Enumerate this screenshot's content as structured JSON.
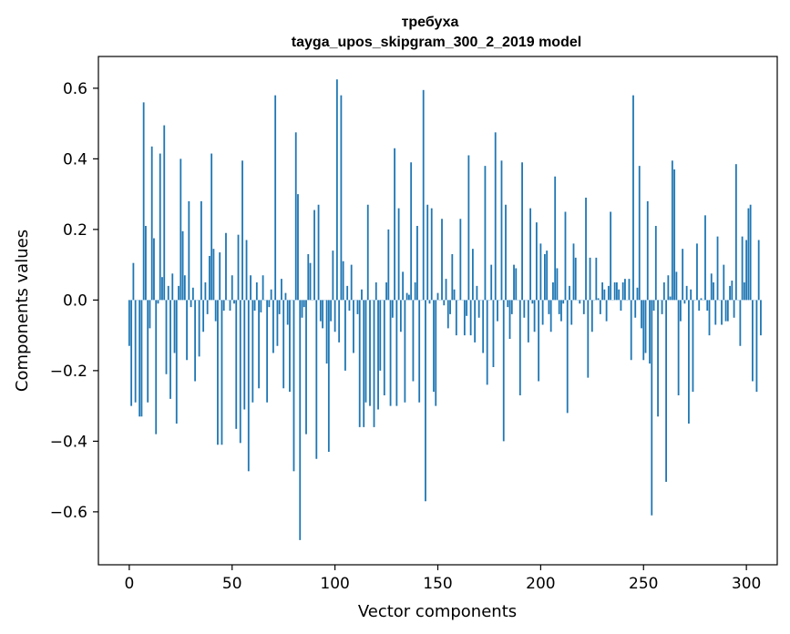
{
  "chart_data": {
    "type": "bar",
    "title": "требуха",
    "subtitle": "tayga_upos_skipgram_300_2_2019 model",
    "xlabel": "Vector components",
    "ylabel": "Components values",
    "xlim": [
      -15,
      315
    ],
    "ylim": [
      -0.75,
      0.69
    ],
    "xticks": [
      0,
      50,
      100,
      150,
      200,
      250,
      300
    ],
    "yticks": [
      -0.6,
      -0.4,
      -0.2,
      0.0,
      0.2,
      0.4,
      0.6
    ],
    "xtick_labels": [
      "0",
      "50",
      "100",
      "150",
      "200",
      "250",
      "300"
    ],
    "ytick_labels": [
      "−0.6",
      "−0.4",
      "−0.2",
      "0.0",
      "0.2",
      "0.4",
      "0.6"
    ],
    "grid": false,
    "bar_color": "#1f77b4",
    "values": [
      -0.13,
      -0.3,
      0.105,
      -0.29,
      0.0,
      -0.33,
      -0.33,
      0.56,
      0.21,
      -0.29,
      -0.08,
      0.435,
      0.175,
      -0.38,
      -0.01,
      0.415,
      0.065,
      0.495,
      -0.21,
      0.04,
      -0.28,
      0.075,
      -0.15,
      -0.35,
      0.04,
      0.4,
      0.195,
      0.07,
      -0.17,
      0.28,
      -0.02,
      0.035,
      -0.23,
      0.0,
      -0.16,
      0.28,
      -0.09,
      0.05,
      -0.04,
      0.125,
      0.415,
      0.145,
      -0.06,
      -0.41,
      0.135,
      -0.41,
      -0.03,
      0.19,
      0.0,
      -0.03,
      0.07,
      -0.01,
      -0.365,
      0.185,
      -0.405,
      0.395,
      -0.31,
      0.17,
      -0.485,
      0.07,
      -0.29,
      -0.03,
      0.05,
      -0.25,
      -0.035,
      0.07,
      0.0,
      -0.29,
      -0.02,
      0.03,
      -0.15,
      0.58,
      -0.13,
      -0.04,
      0.06,
      -0.25,
      0.02,
      -0.07,
      -0.26,
      0.0,
      -0.485,
      0.475,
      0.3,
      -0.68,
      -0.05,
      -0.02,
      -0.38,
      0.13,
      0.105,
      0.0,
      0.255,
      -0.45,
      0.27,
      -0.06,
      -0.08,
      0.0,
      -0.18,
      -0.43,
      -0.06,
      0.14,
      -0.09,
      0.625,
      -0.12,
      0.58,
      0.11,
      -0.2,
      0.04,
      -0.03,
      0.1,
      -0.15,
      0.0,
      -0.04,
      -0.36,
      0.03,
      -0.36,
      -0.29,
      0.27,
      -0.3,
      0.0,
      -0.36,
      0.05,
      -0.31,
      -0.2,
      0.0,
      -0.27,
      0.05,
      0.2,
      -0.3,
      -0.05,
      0.43,
      -0.3,
      0.26,
      -0.09,
      0.08,
      -0.29,
      0.02,
      0.015,
      0.39,
      -0.23,
      0.05,
      0.21,
      -0.29,
      0.0,
      0.595,
      -0.57,
      0.27,
      -0.01,
      0.26,
      -0.26,
      -0.3,
      0.02,
      0.0,
      0.23,
      -0.015,
      0.06,
      -0.08,
      -0.04,
      0.13,
      0.03,
      -0.1,
      0.0,
      0.23,
      0.0,
      -0.1,
      -0.045,
      0.41,
      -0.1,
      0.145,
      -0.12,
      0.04,
      -0.05,
      0.0,
      -0.15,
      0.38,
      -0.24,
      0.0,
      0.1,
      -0.19,
      0.475,
      -0.06,
      0.0,
      0.395,
      -0.4,
      0.27,
      -0.02,
      -0.11,
      -0.04,
      0.1,
      0.09,
      0.0,
      -0.27,
      0.39,
      -0.05,
      0.0,
      -0.12,
      0.26,
      -0.01,
      -0.09,
      0.22,
      -0.23,
      0.16,
      -0.07,
      0.13,
      0.14,
      -0.04,
      -0.09,
      0.05,
      0.35,
      0.09,
      -0.04,
      -0.06,
      -0.01,
      0.25,
      -0.32,
      0.04,
      -0.07,
      0.16,
      0.12,
      0.0,
      -0.01,
      0.0,
      -0.04,
      0.29,
      -0.22,
      0.12,
      -0.09,
      0.0,
      0.12,
      0.005,
      -0.04,
      0.05,
      0.03,
      -0.06,
      0.04,
      0.25,
      0.0,
      0.05,
      0.05,
      0.03,
      -0.03,
      0.05,
      0.06,
      0.0,
      0.06,
      -0.17,
      0.58,
      -0.05,
      0.035,
      0.38,
      -0.08,
      -0.17,
      -0.15,
      0.28,
      -0.18,
      -0.61,
      -0.03,
      0.21,
      -0.33,
      0.0,
      -0.04,
      0.05,
      -0.515,
      0.07,
      0.01,
      0.395,
      0.37,
      0.08,
      -0.27,
      -0.06,
      0.145,
      -0.01,
      0.04,
      -0.35,
      0.03,
      -0.26,
      0.0,
      0.16,
      -0.03,
      0.005,
      0.0,
      0.24,
      -0.03,
      -0.1,
      0.075,
      0.05,
      -0.07,
      0.18,
      0.0,
      -0.07,
      0.1,
      -0.06,
      -0.06,
      0.04,
      0.055,
      -0.05,
      0.385,
      0.0,
      -0.13,
      0.18,
      0.05,
      0.17,
      0.26,
      0.27,
      -0.23,
      0.0,
      -0.26,
      0.17,
      -0.1
    ]
  }
}
